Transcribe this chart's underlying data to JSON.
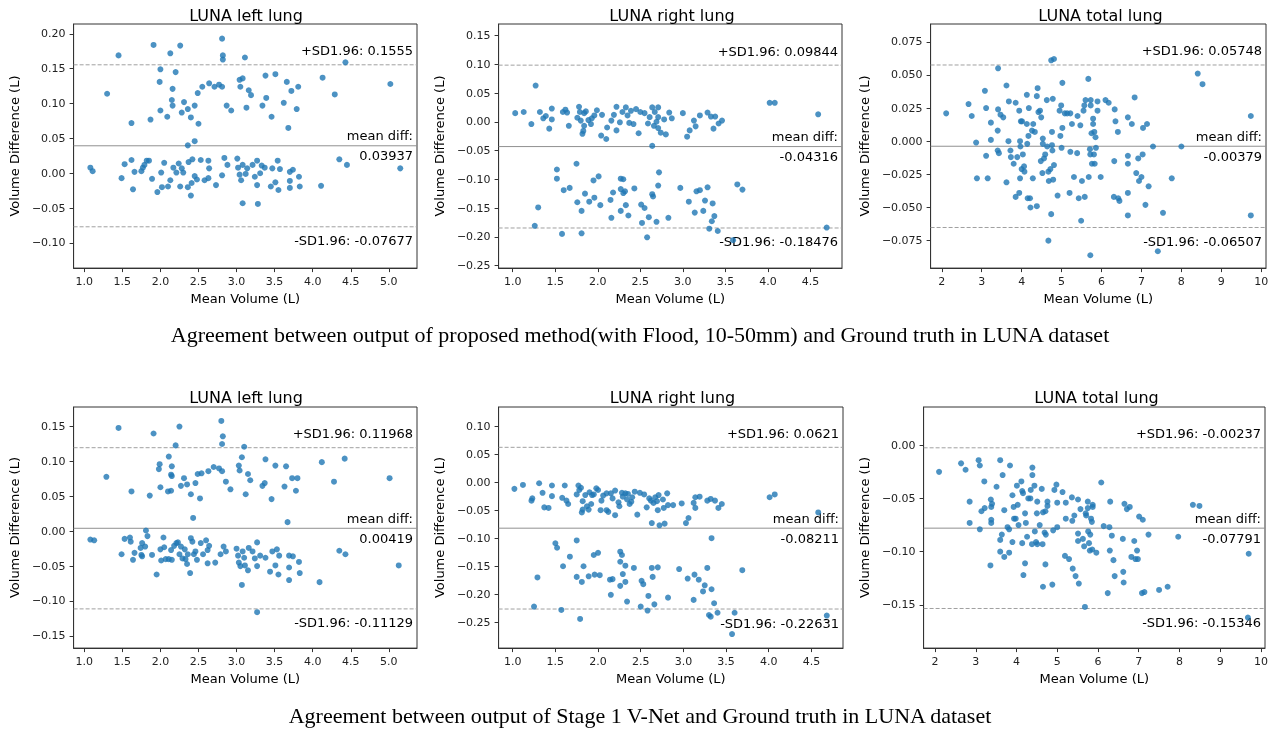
{
  "chart_data": [
    {
      "type": "scatter",
      "title": "LUNA left lung",
      "xlabel": "Mean Volume (L)",
      "ylabel": "Volume Difference (L)",
      "color": "#1f77b4",
      "marker": "circle",
      "grid": false,
      "xlim": [
        0.86,
        5.37
      ],
      "ylim": [
        -0.136,
        0.214
      ],
      "xticks": [
        {
          "value": 1,
          "label": "1.0"
        },
        {
          "value": 1.5,
          "label": "1.5"
        },
        {
          "value": 2,
          "label": "2.0"
        },
        {
          "value": 2.5,
          "label": "2.5"
        },
        {
          "value": 3,
          "label": "3.0"
        },
        {
          "value": 3.5,
          "label": "3.5"
        },
        {
          "value": 4,
          "label": "4.0"
        },
        {
          "value": 4.5,
          "label": "4.5"
        },
        {
          "value": 5,
          "label": "5.0"
        }
      ],
      "yticks": [
        {
          "value": -0.1,
          "label": "−0.10"
        },
        {
          "value": -0.05,
          "label": "−0.05"
        },
        {
          "value": 0,
          "label": "0.00"
        },
        {
          "value": 0.05,
          "label": "0.05"
        },
        {
          "value": 0.1,
          "label": "0.10"
        },
        {
          "value": 0.15,
          "label": "0.15"
        },
        {
          "value": 0.2,
          "label": "0.20"
        }
      ],
      "ref_lines": [
        {
          "axis": "y",
          "value": 0.1555,
          "label": "+SD1.96: 0.1555",
          "line_style": "dashed",
          "color": "#a0a0a0"
        },
        {
          "axis": "y",
          "value": 0.03937,
          "label": "mean diff:\n0.03937",
          "line_style": "solid",
          "color": "#909090"
        },
        {
          "axis": "y",
          "value": -0.07677,
          "label": "-SD1.96: -0.07677",
          "line_style": "dashed",
          "color": "#a0a0a0"
        }
      ],
      "x": [
        1.45,
        1.91,
        2.26,
        2.81,
        2.13,
        2.82,
        2.82,
        3.11,
        4.43,
        1.3,
        2.0,
        1.99,
        2.2,
        2.16,
        2.15,
        2.16,
        2.0,
        2.09,
        2.28,
        2.31,
        2.36,
        2.45,
        1.62,
        1.87,
        2.4,
        2.5,
        2.49,
        2.55,
        2.64,
        2.71,
        2.77,
        2.81,
        2.87,
        2.93,
        3.04,
        3.08,
        3.05,
        3.16,
        3.19,
        3.13,
        3.38,
        3.51,
        3.39,
        3.34,
        3.46,
        3.66,
        3.72,
        3.81,
        3.62,
        3.79,
        3.68,
        4.13,
        4.29,
        5.02,
        2.36,
        2.45,
        1.08,
        1.11,
        1.49,
        1.53,
        1.62,
        1.64,
        1.66,
        1.75,
        1.77,
        1.79,
        1.82,
        1.85,
        1.89,
        1.96,
        2.01,
        2.02,
        2.05,
        2.1,
        2.13,
        2.17,
        2.21,
        2.24,
        2.26,
        2.28,
        2.3,
        2.36,
        2.37,
        2.4,
        2.41,
        2.42,
        2.45,
        2.48,
        2.53,
        2.58,
        2.63,
        2.64,
        2.63,
        2.73,
        2.84,
        2.81,
        2.88,
        3.01,
        3.02,
        3.04,
        3.06,
        3.08,
        3.08,
        3.12,
        3.14,
        3.21,
        3.24,
        3.27,
        3.27,
        3.28,
        3.31,
        3.33,
        3.37,
        3.45,
        3.47,
        3.51,
        3.54,
        3.55,
        3.57,
        3.7,
        3.7,
        3.7,
        3.74,
        3.82,
        3.83,
        4.11,
        4.35,
        4.45,
        5.15
      ],
      "values": [
        0.169,
        0.184,
        0.183,
        0.193,
        0.172,
        0.169,
        0.163,
        0.166,
        0.159,
        0.114,
        0.149,
        0.131,
        0.145,
        0.121,
        0.105,
        0.097,
        0.09,
        0.081,
        0.087,
        0.102,
        0.092,
        0.097,
        0.072,
        0.077,
        0.08,
        0.071,
        0.115,
        0.124,
        0.129,
        0.124,
        0.127,
        0.124,
        0.097,
        0.09,
        0.134,
        0.136,
        0.124,
        0.119,
        0.112,
        0.094,
        0.14,
        0.142,
        0.108,
        0.097,
        0.081,
        0.131,
        0.118,
        0.124,
        0.101,
        0.092,
        0.065,
        0.137,
        0.113,
        0.128,
        0.04,
        0.046,
        0.008,
        0.003,
        -0.007,
        0.013,
        0.019,
        -0.023,
        0.002,
        0.003,
        0.008,
        0.012,
        0.018,
        0.018,
        -0.008,
        -0.027,
        0.001,
        -0.02,
        0.015,
        -0.019,
        -0.01,
        0.008,
        0.001,
        0.014,
        -0.019,
        0.007,
        0.001,
        -0.02,
        0.016,
        -0.032,
        -0.014,
        0.02,
        -0.004,
        -0.009,
        0.019,
        -0.01,
        0.018,
        0.007,
        -0.007,
        -0.017,
        0.022,
        -0.003,
        0.012,
        0.021,
        0.008,
        -0.002,
        -0.01,
        -0.043,
        0.012,
        -0.001,
        0.007,
        0.012,
        -0.005,
        -0.017,
        0.018,
        -0.044,
        0.0,
        0.011,
        0.008,
        -0.019,
        0.007,
        -0.013,
        0.018,
        -0.024,
        0.006,
        0.002,
        -0.011,
        -0.021,
        0.005,
        -0.005,
        -0.019,
        -0.018,
        0.02,
        0.012,
        0.007
      ]
    },
    {
      "type": "scatter",
      "title": "LUNA right lung",
      "xlabel": "Mean Volume (L)",
      "ylabel": "Volume Difference (L)",
      "color": "#1f77b4",
      "marker": "circle",
      "grid": false,
      "annotations": [
        "Agreement between output of proposed method(with Flood, 10-50mm) and Ground truth in LUNA dataset"
      ],
      "xlim": [
        0.835,
        4.87
      ],
      "ylim": [
        -0.2545,
        0.17
      ],
      "xticks": [
        {
          "value": 1,
          "label": "1.0"
        },
        {
          "value": 1.5,
          "label": "1.5"
        },
        {
          "value": 2,
          "label": "2.0"
        },
        {
          "value": 2.5,
          "label": "2.5"
        },
        {
          "value": 3,
          "label": "3.0"
        },
        {
          "value": 3.5,
          "label": "3.5"
        },
        {
          "value": 4,
          "label": "4.0"
        },
        {
          "value": 4.5,
          "label": "4.5"
        }
      ],
      "yticks": [
        {
          "value": -0.25,
          "label": "−0.25"
        },
        {
          "value": -0.2,
          "label": "−0.20"
        },
        {
          "value": -0.15,
          "label": "−0.15"
        },
        {
          "value": -0.1,
          "label": "−0.10"
        },
        {
          "value": -0.05,
          "label": "−0.05"
        },
        {
          "value": 0,
          "label": "0.00"
        },
        {
          "value": 0.05,
          "label": "0.05"
        },
        {
          "value": 0.1,
          "label": "0.10"
        },
        {
          "value": 0.15,
          "label": "0.15"
        }
      ],
      "ref_lines": [
        {
          "axis": "y",
          "value": 0.09844,
          "label": "+SD1.96: 0.09844",
          "line_style": "dashed",
          "color": "#a0a0a0"
        },
        {
          "axis": "y",
          "value": -0.04316,
          "label": "mean diff:\n-0.04316",
          "line_style": "solid",
          "color": "#909090"
        },
        {
          "axis": "y",
          "value": -0.18476,
          "label": "-SD1.96: -0.18476",
          "line_style": "dashed",
          "color": "#a0a0a0"
        }
      ],
      "x": [
        1.03,
        1.13,
        1.22,
        1.27,
        1.32,
        1.36,
        1.39,
        1.43,
        1.46,
        1.46,
        1.59,
        1.62,
        1.64,
        1.66,
        1.78,
        1.76,
        1.79,
        1.8,
        1.82,
        1.83,
        1.84,
        1.86,
        1.84,
        1.89,
        1.92,
        1.93,
        1.96,
        1.99,
        2.04,
        2.05,
        2.1,
        2.11,
        2.16,
        2.19,
        2.22,
        2.22,
        2.26,
        2.29,
        2.33,
        2.35,
        2.37,
        2.39,
        2.42,
        2.45,
        2.48,
        2.5,
        2.55,
        2.59,
        2.61,
        2.64,
        2.64,
        2.66,
        2.67,
        2.69,
        2.71,
        2.71,
        2.71,
        2.74,
        2.78,
        2.8,
        2.84,
        2.87,
        3.0,
        3.05,
        3.08,
        3.13,
        3.15,
        3.2,
        3.29,
        3.33,
        3.36,
        3.38,
        3.42,
        3.46,
        4.02,
        4.08,
        4.59,
        1.52,
        1.52,
        1.6,
        1.67,
        1.26,
        1.3,
        1.58,
        1.75,
        1.76,
        1.81,
        1.81,
        1.85,
        1.9,
        1.95,
        1.96,
        2.01,
        2.03,
        2.15,
        2.16,
        2.18,
        2.27,
        2.3,
        2.27,
        2.3,
        2.32,
        2.33,
        2.27,
        2.36,
        2.43,
        2.51,
        2.55,
        2.52,
        2.58,
        2.6,
        2.64,
        2.65,
        2.69,
        2.71,
        2.72,
        2.83,
        2.97,
        3.07,
        3.14,
        3.16,
        3.2,
        3.24,
        3.26,
        3.29,
        3.31,
        3.34,
        3.35,
        3.37,
        3.41,
        3.59,
        3.64,
        3.7,
        4.69
      ],
      "values": [
        0.015,
        0.017,
        -0.004,
        0.063,
        0.017,
        0.006,
        0.01,
        -0.012,
        0.023,
        0.004,
        0.017,
        0.021,
        0.016,
        -0.007,
        0.026,
        0.007,
        0.017,
        0.002,
        -0.021,
        -0.016,
        0.015,
        0.018,
        -0.007,
        0.003,
        -0.004,
        0.006,
        0.011,
        0.02,
        -0.024,
        0.012,
        -0.03,
        -0.01,
        0.002,
        0.012,
        0.026,
        -0.015,
        -0.001,
        0.017,
        0.025,
        0.011,
        -0.002,
        0.019,
        -0.004,
        0.022,
        -0.02,
        0.017,
        0.015,
        -0.003,
        0.008,
        0.025,
        -0.042,
        -0.007,
        0.017,
        0.0,
        0.025,
        0.008,
        -0.011,
        -0.019,
        0.004,
        -0.022,
        0.016,
        0.006,
        0.015,
        -0.026,
        -0.015,
        0.002,
        -0.008,
        0.011,
        0.016,
        0.009,
        -0.012,
        0.009,
        -0.003,
        0.002,
        0.033,
        0.033,
        0.013,
        -0.083,
        -0.099,
        -0.119,
        -0.115,
        -0.181,
        -0.149,
        -0.195,
        -0.073,
        -0.14,
        -0.155,
        -0.194,
        -0.125,
        -0.139,
        -0.102,
        -0.132,
        -0.095,
        -0.145,
        -0.136,
        -0.167,
        -0.123,
        -0.099,
        -0.1,
        -0.117,
        -0.124,
        -0.121,
        -0.145,
        -0.155,
        -0.163,
        -0.116,
        -0.144,
        -0.15,
        -0.176,
        -0.201,
        -0.166,
        -0.126,
        -0.13,
        -0.174,
        -0.111,
        -0.088,
        -0.167,
        -0.115,
        -0.139,
        -0.158,
        -0.121,
        -0.119,
        -0.155,
        -0.137,
        -0.114,
        -0.186,
        -0.173,
        -0.142,
        -0.164,
        -0.19,
        -0.206,
        -0.109,
        -0.118,
        -0.184
      ]
    },
    {
      "type": "scatter",
      "title": "LUNA total lung",
      "xlabel": "Mean Volume (L)",
      "ylabel": "Volume Difference (L)",
      "color": "#1f77b4",
      "marker": "circle",
      "grid": false,
      "xlim": [
        1.72,
        10.12
      ],
      "ylim": [
        -0.0957,
        0.0884
      ],
      "xticks": [
        2,
        3,
        4,
        5,
        6,
        7,
        8,
        9,
        10
      ],
      "yticks": [
        {
          "value": -0.075,
          "label": "−0.075"
        },
        {
          "value": -0.05,
          "label": "−0.050"
        },
        {
          "value": -0.025,
          "label": "−0.025"
        },
        {
          "value": 0,
          "label": "0.000"
        },
        {
          "value": 0.025,
          "label": "0.025"
        },
        {
          "value": 0.05,
          "label": "0.050"
        },
        {
          "value": 0.075,
          "label": "0.075"
        }
      ],
      "ref_lines": [
        {
          "axis": "y",
          "value": 0.05748,
          "label": "+SD1.96: 0.05748",
          "line_style": "dashed",
          "color": "#a0a0a0"
        },
        {
          "axis": "y",
          "value": -0.00379,
          "label": "mean diff:\n-0.00379",
          "line_style": "solid",
          "color": "#909090"
        },
        {
          "axis": "y",
          "value": -0.06507,
          "label": "-SD1.96: -0.06507",
          "line_style": "dashed",
          "color": "#a0a0a0"
        }
      ],
      "x": [
        2.11,
        2.67,
        2.75,
        2.86,
        2.88,
        3.08,
        3.11,
        3.11,
        3.15,
        3.23,
        3.23,
        3.41,
        3.41,
        3.4,
        3.4,
        3.43,
        3.47,
        3.54,
        3.62,
        3.62,
        3.67,
        3.68,
        3.72,
        3.73,
        3.8,
        3.85,
        3.85,
        3.89,
        3.94,
        3.94,
        3.96,
        3.96,
        3.97,
        3.98,
        4.01,
        4.0,
        4.03,
        4.06,
        4.07,
        4.13,
        4.13,
        4.14,
        4.15,
        4.17,
        4.18,
        4.21,
        4.22,
        4.26,
        4.29,
        4.28,
        4.33,
        4.38,
        4.38,
        4.4,
        4.42,
        4.46,
        4.48,
        4.49,
        4.52,
        4.53,
        4.53,
        4.56,
        4.59,
        4.63,
        4.64,
        4.67,
        4.67,
        4.68,
        4.72,
        4.74,
        4.74,
        4.76,
        4.76,
        4.77,
        4.79,
        4.78,
        4.81,
        4.81,
        4.9,
        4.95,
        4.97,
        4.99,
        5.0,
        5.02,
        5.02,
        5.08,
        5.14,
        5.2,
        5.22,
        5.22,
        5.26,
        5.31,
        5.39,
        5.4,
        5.43,
        5.47,
        5.49,
        5.51,
        5.55,
        5.57,
        5.58,
        5.6,
        5.67,
        5.68,
        5.71,
        5.72,
        5.73,
        5.73,
        5.75,
        5.72,
        5.76,
        5.79,
        5.79,
        5.81,
        5.82,
        5.83,
        5.85,
        5.86,
        5.9,
        5.9,
        5.98,
        6.1,
        6.18,
        6.31,
        6.32,
        6.33,
        6.35,
        6.41,
        6.42,
        6.45,
        6.66,
        6.66,
        6.66,
        6.66,
        6.66,
        6.76,
        6.83,
        6.87,
        6.92,
        6.94,
        7.0,
        7.04,
        7.03,
        7.1,
        7.14,
        7.18,
        7.29,
        7.41,
        7.54,
        7.76,
        8.0,
        8.41,
        8.53,
        9.74,
        9.74
      ],
      "values": [
        0.021,
        0.028,
        0.019,
        -0.001,
        -0.028,
        0.038,
        0.025,
        -0.011,
        -0.028,
        0.014,
        0.001,
        0.055,
        0.024,
        0.008,
        -0.007,
        -0.009,
        0.02,
        0.018,
        0.042,
        -0.031,
        0.0,
        0.03,
        -0.007,
        -0.012,
        -0.017,
        0.029,
        -0.042,
        -0.012,
        0.023,
        -0.039,
        -0.028,
        0.0,
        -0.004,
        0.015,
        0.015,
        -0.021,
        -0.01,
        -0.019,
        -0.023,
        0.035,
        0.013,
        -0.002,
        -0.043,
        0.004,
        0.025,
        -0.043,
        -0.05,
        0.008,
        0.013,
        -0.028,
        0.007,
        0.034,
        -0.049,
        0.04,
        0.022,
        0.023,
        -0.015,
        0.018,
        -0.024,
        0.002,
        -0.002,
        -0.013,
        -0.01,
        0.031,
        -0.004,
        -0.023,
        -0.075,
        -0.03,
        -0.021,
        0.061,
        -0.055,
        0.007,
        -0.003,
        -0.007,
        -0.029,
        0.032,
        0.062,
        -0.018,
        -0.041,
        0.023,
        0.004,
        0.027,
        -0.005,
        0.044,
        0.01,
        0.021,
        0.021,
        -0.039,
        0.021,
        -0.008,
        0.013,
        -0.027,
        -0.009,
        0.019,
        -0.043,
        0.012,
        -0.06,
        -0.03,
        0.023,
        0.027,
        -0.042,
        0.031,
        0.047,
        -0.027,
        -0.006,
        -0.01,
        0.027,
        0.031,
        0.006,
        -0.086,
        -0.017,
        0.013,
        0.017,
        -0.01,
        0.007,
        -0.017,
        0.003,
        -0.005,
        0.03,
        0.023,
        -0.027,
        0.031,
        0.029,
        -0.042,
        -0.015,
        0.024,
        0.015,
        0.007,
        -0.043,
        -0.045,
        0.018,
        -0.011,
        -0.017,
        -0.039,
        -0.056,
        0.013,
        0.033,
        -0.024,
        -0.013,
        -0.03,
        -0.027,
        0.01,
        -0.01,
        -0.048,
        0.013,
        -0.034,
        -0.004,
        -0.083,
        -0.054,
        -0.028,
        -0.004,
        0.051,
        0.043,
        0.019,
        -0.056
      ]
    },
    {
      "type": "scatter",
      "title": "LUNA left lung",
      "xlabel": "Mean Volume (L)",
      "ylabel": "Volume Difference (L)",
      "color": "#1f77b4",
      "marker": "circle",
      "grid": false,
      "xlim": [
        0.86,
        5.37
      ],
      "ylim": [
        -0.1675,
        0.178
      ],
      "xticks": [
        {
          "value": 1,
          "label": "1.0"
        },
        {
          "value": 1.5,
          "label": "1.5"
        },
        {
          "value": 2,
          "label": "2.0"
        },
        {
          "value": 2.5,
          "label": "2.5"
        },
        {
          "value": 3,
          "label": "3.0"
        },
        {
          "value": 3.5,
          "label": "3.5"
        },
        {
          "value": 4,
          "label": "4.0"
        },
        {
          "value": 4.5,
          "label": "4.5"
        },
        {
          "value": 5,
          "label": "5.0"
        }
      ],
      "yticks": [
        {
          "value": -0.15,
          "label": "−0.15"
        },
        {
          "value": -0.1,
          "label": "−0.10"
        },
        {
          "value": -0.05,
          "label": "−0.05"
        },
        {
          "value": 0,
          "label": "0.00"
        },
        {
          "value": 0.05,
          "label": "0.05"
        },
        {
          "value": 0.1,
          "label": "0.10"
        },
        {
          "value": 0.15,
          "label": "0.15"
        }
      ],
      "ref_lines": [
        {
          "axis": "y",
          "value": 0.11968,
          "label": "+SD1.96: 0.11968",
          "line_style": "dashed",
          "color": "#a0a0a0"
        },
        {
          "axis": "y",
          "value": 0.00419,
          "label": "mean diff:\n0.00419",
          "line_style": "solid",
          "color": "#909090"
        },
        {
          "axis": "y",
          "value": -0.11129,
          "label": "-SD1.96: -0.11129",
          "line_style": "dashed",
          "color": "#a0a0a0"
        }
      ],
      "x": [
        1.45,
        1.91,
        2.25,
        2.8,
        2.82,
        2.81,
        2.2,
        3.1,
        1.29,
        1.99,
        1.98,
        2.11,
        2.15,
        2.14,
        2.15,
        1.62,
        1.86,
        2.0,
        2.1,
        2.14,
        2.27,
        2.31,
        2.35,
        2.4,
        2.46,
        2.49,
        2.52,
        2.54,
        2.63,
        2.7,
        2.77,
        2.81,
        2.86,
        2.92,
        3.03,
        3.04,
        3.07,
        3.12,
        3.15,
        3.18,
        3.34,
        3.37,
        3.38,
        3.46,
        3.51,
        3.63,
        3.65,
        3.73,
        3.8,
        3.78,
        3.67,
        4.12,
        4.28,
        4.42,
        5.01,
        2.43,
        1.81,
        1.08,
        1.13,
        1.49,
        1.53,
        1.6,
        1.61,
        1.64,
        1.66,
        1.74,
        1.76,
        1.75,
        1.76,
        1.8,
        1.83,
        1.89,
        1.95,
        2.0,
        2.01,
        2.04,
        2.05,
        2.07,
        2.11,
        2.14,
        2.15,
        2.18,
        2.21,
        2.23,
        2.25,
        2.27,
        2.29,
        2.32,
        2.33,
        2.35,
        2.36,
        2.39,
        2.4,
        2.42,
        2.44,
        2.48,
        2.46,
        2.53,
        2.56,
        2.6,
        2.62,
        2.64,
        2.62,
        2.72,
        2.79,
        2.83,
        2.86,
        3.0,
        3.02,
        3.03,
        3.05,
        3.07,
        3.08,
        3.1,
        3.11,
        3.15,
        3.16,
        3.21,
        3.24,
        3.27,
        3.27,
        3.27,
        3.31,
        3.38,
        3.44,
        3.47,
        3.51,
        3.53,
        3.55,
        3.56,
        3.69,
        3.69,
        3.69,
        3.74,
        3.82,
        3.83,
        4.09,
        4.35,
        4.43,
        5.13
      ],
      "values": [
        0.148,
        0.14,
        0.15,
        0.158,
        0.136,
        0.125,
        0.123,
        0.121,
        0.078,
        0.096,
        0.089,
        0.107,
        0.093,
        0.081,
        0.079,
        0.057,
        0.051,
        0.063,
        0.057,
        0.058,
        0.065,
        0.076,
        0.067,
        0.053,
        0.069,
        0.082,
        0.047,
        0.083,
        0.086,
        0.092,
        0.09,
        0.086,
        0.071,
        0.06,
        0.094,
        0.087,
        0.106,
        0.053,
        0.082,
        0.073,
        0.065,
        0.069,
        0.103,
        0.046,
        0.094,
        0.064,
        0.093,
        0.076,
        0.076,
        0.058,
        0.013,
        0.099,
        0.071,
        0.104,
        0.076,
        0.019,
        0.001,
        -0.012,
        -0.013,
        -0.033,
        -0.011,
        -0.009,
        -0.015,
        -0.041,
        -0.031,
        -0.024,
        -0.017,
        -0.034,
        -0.036,
        -0.022,
        -0.007,
        -0.034,
        -0.062,
        -0.026,
        -0.042,
        -0.009,
        -0.023,
        -0.04,
        -0.04,
        -0.027,
        -0.041,
        -0.021,
        -0.017,
        -0.016,
        -0.033,
        -0.022,
        -0.039,
        -0.026,
        -0.04,
        -0.047,
        -0.033,
        -0.06,
        -0.01,
        -0.015,
        -0.033,
        -0.041,
        -0.029,
        -0.017,
        -0.033,
        -0.013,
        -0.027,
        -0.021,
        -0.046,
        -0.045,
        -0.033,
        -0.022,
        -0.029,
        -0.025,
        -0.035,
        -0.045,
        -0.05,
        -0.077,
        -0.029,
        -0.038,
        -0.049,
        -0.056,
        -0.024,
        -0.029,
        -0.039,
        -0.016,
        -0.05,
        -0.116,
        -0.035,
        -0.038,
        -0.058,
        -0.029,
        -0.049,
        -0.026,
        -0.062,
        -0.035,
        -0.035,
        -0.052,
        -0.07,
        -0.036,
        -0.044,
        -0.06,
        -0.073,
        -0.028,
        -0.033,
        -0.049
      ]
    },
    {
      "type": "scatter",
      "title": "LUNA right lung",
      "xlabel": "Mean Volume (L)",
      "ylabel": "Volume Difference (L)",
      "color": "#1f77b4",
      "marker": "circle",
      "grid": false,
      "annotations": [
        "Agreement between output of Stage 1 V-Net and Ground truth in LUNA dataset"
      ],
      "xlim": [
        0.835,
        4.87
      ],
      "ylim": [
        -0.296,
        0.134
      ],
      "xticks": [
        {
          "value": 1,
          "label": "1.0"
        },
        {
          "value": 1.5,
          "label": "1.5"
        },
        {
          "value": 2,
          "label": "2.0"
        },
        {
          "value": 2.5,
          "label": "2.5"
        },
        {
          "value": 3,
          "label": "3.0"
        },
        {
          "value": 3.5,
          "label": "3.5"
        },
        {
          "value": 4,
          "label": "4.0"
        },
        {
          "value": 4.5,
          "label": "4.5"
        }
      ],
      "yticks": [
        {
          "value": -0.25,
          "label": "−0.25"
        },
        {
          "value": -0.2,
          "label": "−0.20"
        },
        {
          "value": -0.15,
          "label": "−0.15"
        },
        {
          "value": -0.1,
          "label": "−0.10"
        },
        {
          "value": -0.05,
          "label": "−0.05"
        },
        {
          "value": 0,
          "label": "0.00"
        },
        {
          "value": 0.05,
          "label": "0.05"
        },
        {
          "value": 0.1,
          "label": "0.10"
        }
      ],
      "ref_lines": [
        {
          "axis": "y",
          "value": 0.0621,
          "label": "+SD1.96: 0.0621",
          "line_style": "dashed",
          "color": "#a0a0a0"
        },
        {
          "axis": "y",
          "value": -0.08211,
          "label": "mean diff:\n-0.08211",
          "line_style": "solid",
          "color": "#909090"
        },
        {
          "axis": "y",
          "value": -0.22631,
          "label": "-SD1.96: -0.22631",
          "line_style": "dashed",
          "color": "#a0a0a0"
        }
      ],
      "x": [
        1.02,
        1.12,
        1.22,
        1.23,
        1.31,
        1.35,
        1.37,
        1.42,
        1.46,
        1.46,
        1.58,
        1.61,
        1.63,
        1.65,
        1.75,
        1.77,
        1.78,
        1.8,
        1.81,
        1.82,
        1.82,
        1.85,
        1.87,
        1.89,
        1.9,
        1.92,
        1.93,
        1.95,
        1.98,
        2.0,
        2.03,
        2.04,
        2.06,
        2.1,
        2.1,
        2.12,
        2.15,
        2.17,
        2.2,
        2.2,
        2.24,
        2.25,
        2.28,
        2.29,
        2.32,
        2.34,
        2.35,
        2.37,
        2.39,
        2.4,
        2.43,
        2.46,
        2.49,
        2.54,
        2.57,
        2.6,
        2.62,
        2.63,
        2.65,
        2.67,
        2.69,
        2.7,
        2.71,
        2.72,
        2.76,
        2.77,
        2.78,
        2.81,
        2.82,
        2.88,
        2.98,
        3.03,
        3.06,
        3.12,
        3.14,
        3.14,
        3.19,
        3.28,
        3.32,
        3.37,
        3.41,
        3.45,
        4.01,
        4.07,
        4.58,
        1.75,
        1.5,
        1.52,
        1.67,
        1.29,
        1.59,
        1.25,
        1.57,
        1.75,
        1.81,
        1.79,
        1.83,
        1.89,
        1.95,
        1.96,
        2.0,
        2.02,
        2.14,
        2.17,
        2.15,
        2.26,
        2.28,
        2.26,
        2.32,
        2.29,
        2.32,
        2.26,
        2.34,
        2.42,
        2.51,
        2.53,
        2.5,
        2.58,
        2.59,
        2.63,
        2.64,
        2.66,
        2.7,
        2.82,
        2.95,
        3.05,
        3.12,
        3.13,
        3.18,
        3.25,
        3.23,
        3.28,
        3.3,
        3.32,
        3.33,
        3.33,
        3.36,
        3.4,
        3.57,
        3.6,
        3.69,
        4.68
      ],
      "values": [
        -0.012,
        -0.005,
        -0.033,
        -0.029,
        -0.002,
        -0.019,
        -0.045,
        -0.046,
        -0.006,
        -0.025,
        -0.028,
        -0.006,
        -0.033,
        -0.039,
        -0.022,
        -0.006,
        -0.014,
        -0.01,
        -0.054,
        -0.049,
        -0.034,
        -0.023,
        -0.043,
        -0.049,
        -0.018,
        -0.039,
        -0.023,
        -0.022,
        -0.011,
        -0.014,
        -0.05,
        -0.033,
        -0.024,
        -0.02,
        -0.05,
        -0.053,
        -0.02,
        -0.029,
        -0.015,
        -0.059,
        -0.036,
        -0.043,
        -0.019,
        -0.026,
        -0.02,
        -0.031,
        -0.021,
        -0.039,
        -0.035,
        -0.027,
        -0.017,
        -0.058,
        -0.019,
        -0.022,
        -0.045,
        -0.029,
        -0.033,
        -0.073,
        -0.037,
        -0.027,
        -0.034,
        -0.05,
        -0.023,
        -0.077,
        -0.031,
        -0.046,
        -0.074,
        -0.02,
        -0.041,
        -0.041,
        -0.038,
        -0.073,
        -0.064,
        -0.037,
        -0.046,
        -0.027,
        -0.026,
        -0.033,
        -0.03,
        -0.033,
        -0.046,
        -0.039,
        -0.027,
        -0.022,
        -0.054,
        -0.104,
        -0.109,
        -0.117,
        -0.133,
        -0.17,
        -0.15,
        -0.222,
        -0.228,
        -0.169,
        -0.178,
        -0.244,
        -0.15,
        -0.168,
        -0.13,
        -0.165,
        -0.126,
        -0.166,
        -0.174,
        -0.173,
        -0.201,
        -0.124,
        -0.13,
        -0.142,
        -0.149,
        -0.164,
        -0.178,
        -0.185,
        -0.213,
        -0.153,
        -0.176,
        -0.182,
        -0.222,
        -0.229,
        -0.203,
        -0.153,
        -0.169,
        -0.218,
        -0.152,
        -0.206,
        -0.155,
        -0.172,
        -0.21,
        -0.165,
        -0.174,
        -0.184,
        -0.195,
        -0.153,
        -0.237,
        -0.24,
        -0.191,
        -0.1,
        -0.216,
        -0.233,
        -0.271,
        -0.233,
        -0.157,
        -0.238
      ]
    },
    {
      "type": "scatter",
      "title": "LUNA total lung",
      "xlabel": "Mean Volume (L)",
      "ylabel": "Volume Difference (L)",
      "color": "#1f77b4",
      "marker": "circle",
      "grid": false,
      "xlim": [
        1.72,
        10.1
      ],
      "ylim": [
        -0.1907,
        0.036
      ],
      "xticks": [
        2,
        3,
        4,
        5,
        6,
        7,
        8,
        9,
        10
      ],
      "yticks": [
        {
          "value": -0.15,
          "label": "−0.15"
        },
        {
          "value": -0.1,
          "label": "−0.10"
        },
        {
          "value": -0.05,
          "label": "−0.05"
        },
        {
          "value": 0,
          "label": "0.00"
        }
      ],
      "ref_lines": [
        {
          "axis": "y",
          "value": -0.00237,
          "label": "+SD1.96: -0.00237",
          "line_style": "dashed",
          "color": "#a0a0a0"
        },
        {
          "axis": "y",
          "value": -0.07791,
          "label": "mean diff:\n-0.07791",
          "line_style": "solid",
          "color": "#909090"
        },
        {
          "axis": "y",
          "value": -0.15346,
          "label": "-SD1.96: -0.15346",
          "line_style": "dashed",
          "color": "#a0a0a0"
        }
      ],
      "x": [
        2.1,
        2.64,
        2.75,
        2.85,
        2.85,
        3.07,
        3.1,
        3.14,
        3.1,
        3.21,
        3.22,
        3.36,
        3.37,
        3.38,
        3.4,
        3.38,
        3.38,
        3.51,
        3.6,
        3.6,
        3.6,
        3.64,
        3.66,
        3.7,
        3.7,
        3.78,
        3.82,
        3.82,
        3.84,
        3.9,
        3.9,
        3.93,
        3.94,
        3.98,
        4.01,
        4.03,
        4.05,
        4.12,
        4.14,
        4.14,
        4.16,
        4.17,
        4.21,
        4.21,
        4.23,
        4.26,
        4.29,
        4.34,
        4.35,
        4.38,
        4.39,
        4.39,
        4.44,
        4.45,
        4.48,
        4.5,
        4.51,
        4.51,
        4.57,
        4.62,
        4.64,
        4.65,
        4.65,
        4.69,
        4.71,
        4.71,
        4.72,
        4.76,
        4.76,
        4.88,
        4.9,
        4.93,
        4.98,
        5.0,
        5.0,
        5.13,
        5.19,
        5.21,
        5.21,
        5.29,
        5.36,
        5.37,
        5.38,
        5.42,
        5.45,
        5.51,
        5.51,
        5.53,
        5.51,
        5.57,
        5.63,
        5.66,
        5.68,
        5.7,
        5.71,
        5.75,
        5.75,
        5.76,
        5.78,
        5.8,
        5.81,
        5.83,
        5.85,
        5.86,
        5.87,
        5.87,
        5.96,
        6.08,
        6.14,
        6.24,
        6.28,
        6.29,
        6.3,
        6.34,
        6.38,
        6.41,
        6.61,
        6.62,
        6.63,
        6.65,
        6.71,
        6.78,
        6.82,
        6.89,
        6.92,
        6.96,
        6.98,
        7.01,
        7.08,
        7.1,
        7.14,
        7.24,
        7.5,
        7.71,
        7.97,
        8.33,
        8.49,
        9.7,
        9.68
      ],
      "values": [
        -0.025,
        -0.017,
        -0.023,
        -0.053,
        -0.073,
        -0.014,
        -0.019,
        -0.062,
        -0.079,
        -0.034,
        -0.059,
        -0.113,
        -0.051,
        -0.058,
        -0.055,
        -0.07,
        -0.073,
        -0.039,
        -0.014,
        -0.089,
        -0.1,
        -0.084,
        -0.028,
        -0.061,
        -0.105,
        -0.077,
        -0.079,
        -0.101,
        -0.019,
        -0.047,
        -0.091,
        -0.058,
        -0.069,
        -0.069,
        -0.038,
        -0.056,
        -0.075,
        -0.034,
        -0.043,
        -0.092,
        -0.045,
        -0.122,
        -0.064,
        -0.111,
        -0.073,
        -0.086,
        -0.05,
        -0.05,
        -0.042,
        -0.093,
        -0.021,
        -0.028,
        -0.038,
        -0.081,
        -0.091,
        -0.064,
        -0.053,
        -0.093,
        -0.075,
        -0.041,
        -0.093,
        -0.063,
        -0.133,
        -0.082,
        -0.062,
        -0.112,
        -0.084,
        -0.053,
        -0.057,
        -0.131,
        -0.08,
        -0.042,
        -0.037,
        -0.054,
        -0.077,
        -0.044,
        -0.104,
        -0.054,
        -0.069,
        -0.107,
        -0.049,
        -0.071,
        -0.116,
        -0.066,
        -0.123,
        -0.051,
        -0.083,
        -0.13,
        -0.09,
        -0.06,
        -0.088,
        -0.095,
        -0.152,
        -0.064,
        -0.066,
        -0.053,
        -0.059,
        -0.081,
        -0.092,
        -0.099,
        -0.084,
        -0.069,
        -0.072,
        -0.098,
        -0.056,
        -0.058,
        -0.101,
        -0.035,
        -0.076,
        -0.139,
        -0.077,
        -0.099,
        -0.053,
        -0.085,
        -0.108,
        -0.123,
        -0.088,
        -0.119,
        -0.129,
        -0.055,
        -0.06,
        -0.058,
        -0.105,
        -0.09,
        -0.107,
        -0.099,
        -0.107,
        -0.067,
        -0.139,
        -0.07,
        -0.138,
        -0.084,
        -0.136,
        -0.133,
        -0.086,
        -0.056,
        -0.057,
        -0.102,
        -0.162
      ]
    }
  ]
}
